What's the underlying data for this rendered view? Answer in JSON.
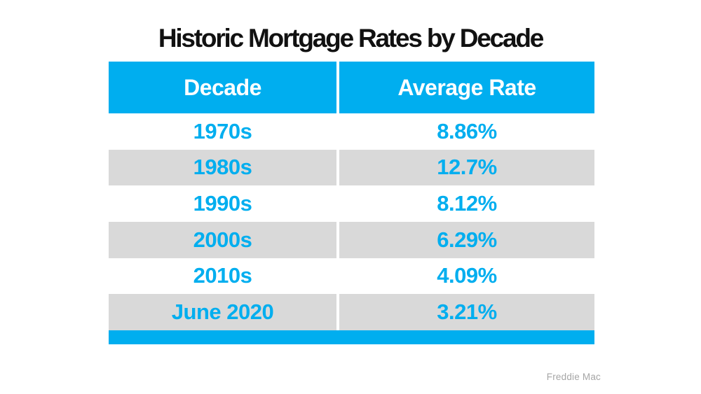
{
  "title": "Historic Mortgage Rates by Decade",
  "source": "Freddie Mac",
  "colors": {
    "accent_cyan": "#00AEEF",
    "alt_row_gray": "#D9D9D9",
    "header_text": "#FFFFFF",
    "title_text": "#111111",
    "source_text": "#A6A6A6"
  },
  "table": {
    "columns": [
      "Decade",
      "Average Rate"
    ],
    "rows": [
      {
        "decade": "1970s",
        "rate": "8.86%"
      },
      {
        "decade": "1980s",
        "rate": "12.7%"
      },
      {
        "decade": "1990s",
        "rate": "8.12%"
      },
      {
        "decade": "2000s",
        "rate": "6.29%"
      },
      {
        "decade": "2010s",
        "rate": "4.09%"
      },
      {
        "decade": "June 2020",
        "rate": "3.21%"
      }
    ]
  },
  "chart_data": {
    "type": "table",
    "title": "Historic Mortgage Rates by Decade",
    "columns": [
      "Decade",
      "Average Rate"
    ],
    "categories": [
      "1970s",
      "1980s",
      "1990s",
      "2000s",
      "2010s",
      "June 2020"
    ],
    "values": [
      8.86,
      12.7,
      8.12,
      6.29,
      4.09,
      3.21
    ],
    "value_labels": [
      "8.86%",
      "12.7%",
      "8.12%",
      "6.29%",
      "4.09%",
      "3.21%"
    ],
    "source": "Freddie Mac",
    "legend_position": "none",
    "grid": false
  }
}
